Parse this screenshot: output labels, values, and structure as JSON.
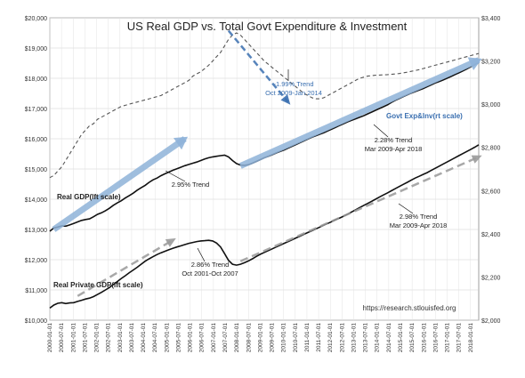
{
  "chart_data": {
    "type": "line",
    "title": "US Real GDP vs. Total Govt Expenditure & Investment",
    "source": "https://research.stlouisfed.org",
    "left_axis": {
      "min": 10000,
      "max": 20000,
      "ticks": [
        "$10,000",
        "$11,000",
        "$12,000",
        "$13,000",
        "$14,000",
        "$15,000",
        "$16,000",
        "$17,000",
        "$18,000",
        "$19,000",
        "$20,000"
      ]
    },
    "right_axis": {
      "min": 2000,
      "max": 3400,
      "ticks": [
        "$2,000",
        "$2,200",
        "$2,400",
        "$2,600",
        "$2,800",
        "$3,000",
        "$3,200",
        "$3,400"
      ]
    },
    "x_ticks": [
      "2000-01-01",
      "2000-07-01",
      "2001-01-01",
      "2001-07-01",
      "2002-01-01",
      "2002-07-01",
      "2003-01-01",
      "2003-07-01",
      "2004-01-01",
      "2004-07-01",
      "2005-01-01",
      "2005-07-01",
      "2006-01-01",
      "2006-07-01",
      "2007-01-01",
      "2007-07-01",
      "2008-01-01",
      "2008-07-01",
      "2009-01-01",
      "2009-07-01",
      "2010-01-01",
      "2010-07-01",
      "2011-01-01",
      "2011-07-01",
      "2012-01-01",
      "2012-07-01",
      "2013-01-01",
      "2013-07-01",
      "2014-01-01",
      "2014-07-01",
      "2015-01-01",
      "2015-07-01",
      "2016-01-01",
      "2016-07-01",
      "2017-01-01",
      "2017-07-01",
      "2018-01-01"
    ],
    "series": [
      {
        "name": "Real GDP(lft scale)",
        "axis": "left",
        "color": "#111111",
        "values": [
          12940,
          13050,
          13080,
          13120,
          13110,
          13150,
          13200,
          13250,
          13300,
          13330,
          13350,
          13420,
          13500,
          13550,
          13620,
          13700,
          13800,
          13880,
          13950,
          14040,
          14120,
          14200,
          14300,
          14380,
          14460,
          14560,
          14640,
          14700,
          14780,
          14840,
          14900,
          14960,
          15010,
          15060,
          15110,
          15150,
          15190,
          15230,
          15280,
          15330,
          15370,
          15400,
          15420,
          15440,
          15460,
          15400,
          15280,
          15180,
          15130,
          15120,
          15140,
          15190,
          15250,
          15310,
          15370,
          15420,
          15470,
          15530,
          15580,
          15630,
          15690,
          15750,
          15810,
          15870,
          15930,
          15990,
          16050,
          16100,
          16150,
          16200,
          16260,
          16320,
          16380,
          16440,
          16500,
          16560,
          16610,
          16660,
          16710,
          16760,
          16820,
          16880,
          16940,
          17000,
          17060,
          17120,
          17200,
          17270,
          17330,
          17390,
          17450,
          17510,
          17560,
          17610,
          17660,
          17720,
          17780,
          17840,
          17890,
          17940,
          18000,
          18060,
          18120,
          18180,
          18240,
          18310,
          18380,
          18450,
          18520
        ]
      },
      {
        "name": "Real Private GDP(lft scale)",
        "axis": "left",
        "color": "#111111",
        "values": [
          10400,
          10500,
          10560,
          10580,
          10550,
          10570,
          10580,
          10620,
          10660,
          10700,
          10730,
          10780,
          10850,
          10920,
          11000,
          11080,
          11180,
          11280,
          11380,
          11470,
          11570,
          11660,
          11750,
          11850,
          11950,
          12030,
          12100,
          12170,
          12230,
          12280,
          12330,
          12380,
          12420,
          12460,
          12500,
          12540,
          12570,
          12600,
          12620,
          12630,
          12640,
          12620,
          12550,
          12420,
          12200,
          11980,
          11850,
          11820,
          11850,
          11900,
          11960,
          12030,
          12110,
          12180,
          12240,
          12300,
          12360,
          12420,
          12480,
          12540,
          12600,
          12660,
          12720,
          12780,
          12840,
          12900,
          12960,
          13020,
          13080,
          13140,
          13200,
          13260,
          13320,
          13380,
          13440,
          13510,
          13580,
          13650,
          13720,
          13790,
          13860,
          13930,
          14000,
          14070,
          14140,
          14210,
          14280,
          14350,
          14420,
          14490,
          14560,
          14630,
          14700,
          14760,
          14820,
          14880,
          14950,
          15020,
          15090,
          15160,
          15230,
          15300,
          15370,
          15440,
          15510,
          15580,
          15650,
          15720,
          15800
        ]
      },
      {
        "name": "Govt Exp&Inv(rt scale)",
        "axis": "right",
        "color": "#555555",
        "dashed": true,
        "values": [
          2660,
          2670,
          2690,
          2710,
          2740,
          2770,
          2800,
          2830,
          2860,
          2880,
          2900,
          2910,
          2930,
          2940,
          2950,
          2960,
          2970,
          2980,
          2990,
          2995,
          3000,
          3005,
          3010,
          3015,
          3020,
          3025,
          3030,
          3035,
          3040,
          3050,
          3060,
          3070,
          3080,
          3090,
          3100,
          3110,
          3130,
          3140,
          3150,
          3165,
          3180,
          3200,
          3220,
          3240,
          3270,
          3300,
          3320,
          3330,
          3320,
          3300,
          3280,
          3260,
          3240,
          3220,
          3200,
          3185,
          3170,
          3155,
          3140,
          3125,
          3110,
          3095,
          3080,
          3065,
          3050,
          3040,
          3030,
          3025,
          3025,
          3030,
          3040,
          3050,
          3060,
          3070,
          3080,
          3090,
          3100,
          3110,
          3120,
          3125,
          3130,
          3132,
          3134,
          3135,
          3136,
          3137,
          3138,
          3140,
          3142,
          3145,
          3148,
          3152,
          3156,
          3160,
          3165,
          3170,
          3175,
          3180,
          3185,
          3190,
          3195,
          3200,
          3205,
          3210,
          3215,
          3220,
          3225,
          3230,
          3235
        ]
      }
    ],
    "trends": [
      {
        "label": "2.95% Trend",
        "axis": "left",
        "from": [
          1,
          13000
        ],
        "to": [
          34,
          16000
        ],
        "style": "blue-arrow"
      },
      {
        "label": "2.28% Trend",
        "sublabel": "Mar 2009-Apr 2018",
        "axis": "left",
        "from": [
          48,
          15100
        ],
        "to": [
          108,
          18600
        ],
        "style": "blue-arrow"
      },
      {
        "label": "-1.99% Trend",
        "sublabel": "Oct 2009-Jan 2014",
        "axis": "right",
        "from": [
          45,
          3340
        ],
        "to": [
          60,
          3010
        ],
        "style": "blue-dashed"
      },
      {
        "label": "2.86% Trend",
        "sublabel": "Oct 2001-Oct 2007",
        "axis": "left",
        "from": [
          7,
          10800
        ],
        "to": [
          31,
          12650
        ],
        "style": "gray-dashed-arrow"
      },
      {
        "label": "2.98% Trend",
        "sublabel": "Mar 2009-Apr 2018",
        "axis": "left",
        "from": [
          48,
          11950
        ],
        "to": [
          108,
          15400
        ],
        "style": "gray-dashed-arrow"
      }
    ],
    "annotations": {
      "real_gdp": "Real GDP(lft scale)",
      "real_private_gdp": "Real Private GDP(lft scale)",
      "govt_exp": "Govt Exp&Inv(rt scale)"
    },
    "grid": true
  }
}
